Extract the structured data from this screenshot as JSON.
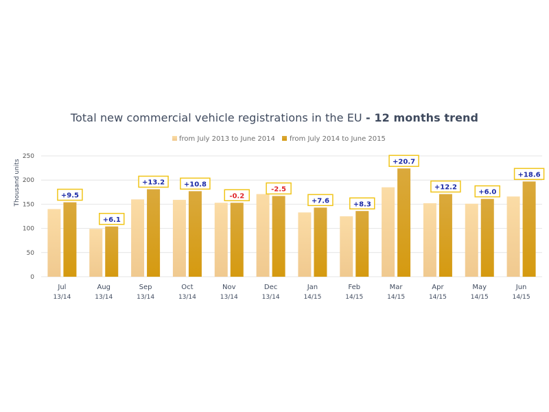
{
  "title_main": "Total new commercial vehicle registrations in the EU",
  "title_bold": "- 12 months trend",
  "colors": {
    "series1": "#f7d9a4",
    "series2": "#d9a531",
    "box_border": "#f0c419",
    "positive": "#1b2aa6",
    "negative": "#e0262a",
    "grid": "#e4e4e4"
  },
  "chart_data": {
    "type": "bar",
    "title": "Total new commercial vehicle registrations in the EU - 12 months trend",
    "ylabel": "Thousand units",
    "ylim": [
      0,
      250
    ],
    "yticks": [
      0,
      50,
      100,
      150,
      200,
      250
    ],
    "legend_position": "top",
    "grid": true,
    "categories": [
      "Jul",
      "Aug",
      "Sep",
      "Oct",
      "Nov",
      "Dec",
      "Jan",
      "Feb",
      "Mar",
      "Apr",
      "May",
      "Jun"
    ],
    "category_periods": [
      "13/14",
      "13/14",
      "13/14",
      "13/14",
      "13/14",
      "13/14",
      "14/15",
      "14/15",
      "14/15",
      "14/15",
      "14/15",
      "14/15"
    ],
    "series": [
      {
        "name": "from July 2013 to June 2014",
        "values": [
          140,
          99,
          160,
          159,
          153,
          171,
          133,
          125,
          185,
          152,
          151,
          166
        ]
      },
      {
        "name": "from July 2014 to June 2015",
        "values": [
          154,
          104,
          181,
          177,
          153,
          167,
          143,
          136,
          224,
          171,
          161,
          197
        ]
      }
    ],
    "annotations": [
      "+9.5",
      "+6.1",
      "+13.2",
      "+10.8",
      "-0.2",
      "-2.5",
      "+7.6",
      "+8.3",
      "+20.7",
      "+12.2",
      "+6.0",
      "+18.6"
    ]
  }
}
